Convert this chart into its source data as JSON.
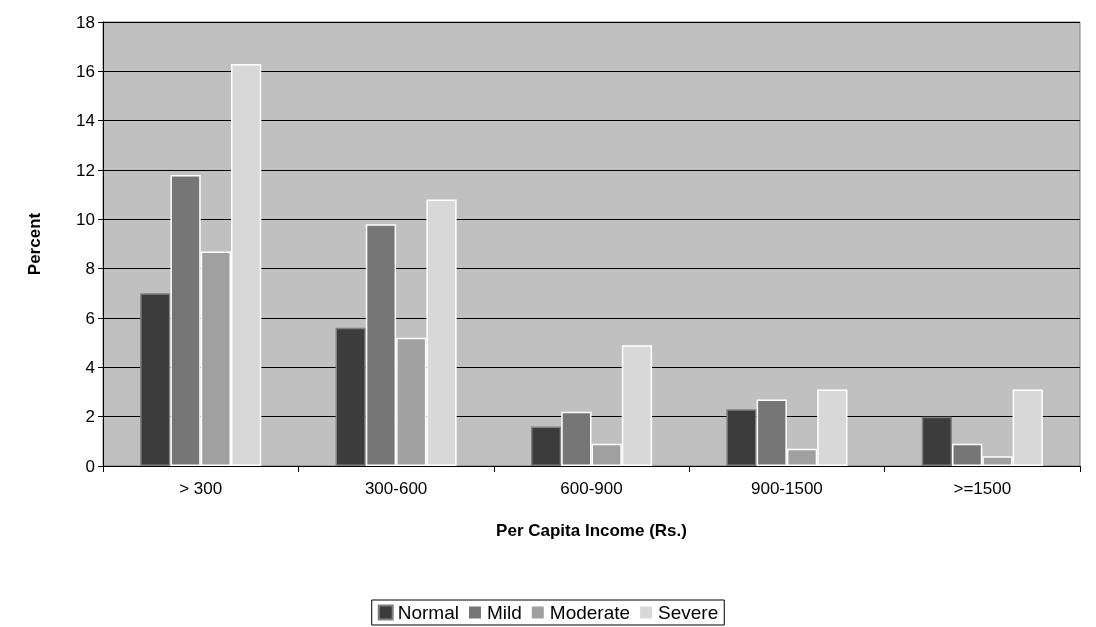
{
  "chart_data": {
    "type": "bar",
    "xlabel": "Per Capita Income (Rs.)",
    "ylabel": "Percent",
    "categories": [
      "> 300",
      "300-600",
      "600-900",
      "900-1500",
      ">=1500"
    ],
    "series": [
      {
        "name": "Normal",
        "color": "#3c3c3c",
        "values": [
          7.0,
          5.6,
          1.6,
          2.3,
          2.0
        ]
      },
      {
        "name": "Mild",
        "color": "#767676",
        "values": [
          11.8,
          9.8,
          2.2,
          2.7,
          0.9
        ]
      },
      {
        "name": "Moderate",
        "color": "#a0a0a0",
        "values": [
          8.7,
          5.2,
          0.9,
          0.7,
          0.4
        ]
      },
      {
        "name": "Severe",
        "color": "#d8d8d8",
        "values": [
          16.3,
          10.8,
          4.9,
          3.1,
          3.1
        ]
      }
    ],
    "ylim": [
      0,
      18
    ],
    "yticks": [
      0,
      2,
      4,
      6,
      8,
      10,
      12,
      14,
      16,
      18
    ],
    "grid": "y",
    "legend": "bottom"
  }
}
